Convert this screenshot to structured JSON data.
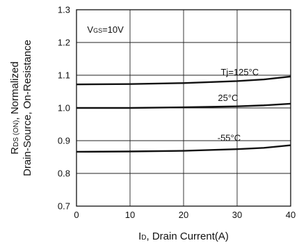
{
  "chart_data": {
    "type": "line",
    "xlabel_main": "I",
    "xlabel_sub": "D",
    "xlabel_rest": ", Drain Current(A)",
    "ylabel_line1_main": "R",
    "ylabel_line1_sub": "DS (ON)",
    "ylabel_line1_rest": ", Normalized",
    "ylabel_line2": "Drain-Source, On-Resistance",
    "xlim": [
      0,
      40
    ],
    "ylim": [
      0.7,
      1.3
    ],
    "xticks": [
      "0",
      "10",
      "20",
      "30",
      "40"
    ],
    "yticks": [
      "0.7",
      "0.8",
      "0.9",
      "1.0",
      "1.1",
      "1.2",
      "1.3"
    ],
    "grid": true,
    "annotation": {
      "main": "V",
      "sub": "GS",
      "rest": "=10V"
    },
    "series": [
      {
        "name": "Tj=125°C",
        "x": [
          0,
          10,
          20,
          30,
          35,
          40
        ],
        "y": [
          1.072,
          1.073,
          1.076,
          1.082,
          1.087,
          1.096
        ]
      },
      {
        "name": "25°C",
        "x": [
          0,
          10,
          20,
          30,
          35,
          40
        ],
        "y": [
          1.0,
          1.0,
          1.002,
          1.005,
          1.008,
          1.013
        ]
      },
      {
        "name": "-55°C",
        "x": [
          0,
          10,
          20,
          30,
          35,
          40
        ],
        "y": [
          0.866,
          0.867,
          0.869,
          0.874,
          0.878,
          0.886
        ]
      }
    ]
  }
}
